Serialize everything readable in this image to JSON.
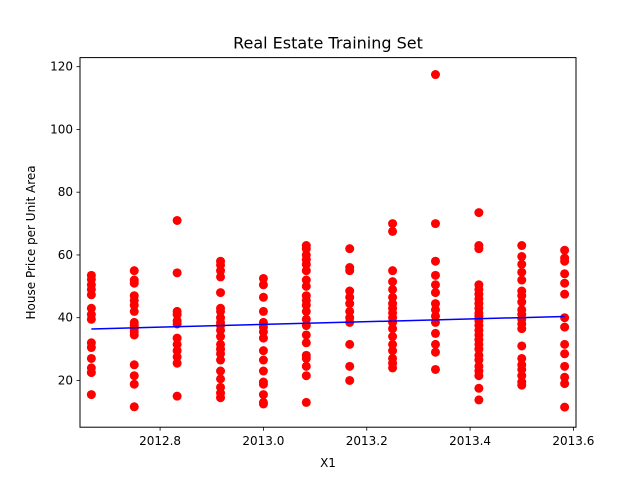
{
  "chart_data": {
    "type": "scatter",
    "title": "Real Estate Training Set",
    "xlabel": "X1",
    "ylabel": "House Price per Unit Area",
    "xlim": [
      2012.645,
      2013.605
    ],
    "ylim": [
      5.1,
      122.9
    ],
    "xticks": [
      {
        "value": 2012.8,
        "label": "2012.8"
      },
      {
        "value": 2013.0,
        "label": "2013.0"
      },
      {
        "value": 2013.2,
        "label": "2013.2"
      },
      {
        "value": 2013.4,
        "label": "2013.4"
      },
      {
        "value": 2013.6,
        "label": "2013.6"
      }
    ],
    "yticks": [
      {
        "value": 20,
        "label": "20"
      },
      {
        "value": 40,
        "label": "40"
      },
      {
        "value": 60,
        "label": "60"
      },
      {
        "value": 80,
        "label": "80"
      },
      {
        "value": 100,
        "label": "100"
      },
      {
        "value": 120,
        "label": "120"
      }
    ],
    "grid": false,
    "colors": {
      "points": "#ff0000",
      "fit_line": "#0000ff"
    },
    "series": [
      {
        "kind": "points",
        "points": [
          {
            "x": 2012.667,
            "ys": [
              53.5,
              52.2,
              50.5,
              49.0,
              47.3,
              43.0,
              41.0,
              39.5,
              32.0,
              30.5,
              27.0,
              24.0,
              22.5,
              15.5
            ]
          },
          {
            "x": 2012.75,
            "ys": [
              55.0,
              52.0,
              51.0,
              47.0,
              45.5,
              44.0,
              42.0,
              38.5,
              37.5,
              36.5,
              35.5,
              34.5,
              25.0,
              21.5,
              18.8,
              11.6
            ]
          },
          {
            "x": 2012.833,
            "ys": [
              71.0,
              54.3,
              42.0,
              41.0,
              39.0,
              38.0,
              33.5,
              31.5,
              29.5,
              27.5,
              25.5,
              15.0
            ]
          },
          {
            "x": 2012.917,
            "ys": [
              58.0,
              56.8,
              55.0,
              53.0,
              48.0,
              43.0,
              42.0,
              40.0,
              38.5,
              37.5,
              36.0,
              34.0,
              31.5,
              30.0,
              28.5,
              26.5,
              23.0,
              20.5,
              17.8,
              16.0,
              14.5
            ]
          },
          {
            "x": 2013.0,
            "ys": [
              52.5,
              50.5,
              46.5,
              42.0,
              38.5,
              37.0,
              35.5,
              33.5,
              29.5,
              26.5,
              23.0,
              19.5,
              18.8,
              15.5,
              13.0,
              12.5
            ]
          },
          {
            "x": 2013.083,
            "ys": [
              63.0,
              62.0,
              60.0,
              58.5,
              57.0,
              55.0,
              52.0,
              50.0,
              47.0,
              45.5,
              44.0,
              42.0,
              39.5,
              37.5,
              34.5,
              32.0,
              28.0,
              27.0,
              24.5,
              21.5,
              13.0
            ]
          },
          {
            "x": 2013.167,
            "ys": [
              62.0,
              56.0,
              55.0,
              48.5,
              46.5,
              44.5,
              42.0,
              40.0,
              38.5,
              31.5,
              24.5,
              20.0
            ]
          },
          {
            "x": 2013.25,
            "ys": [
              70.0,
              67.5,
              55.0,
              51.5,
              49.0,
              46.5,
              44.5,
              43.0,
              41.5,
              40.0,
              38.5,
              36.5,
              34.0,
              31.5,
              29.5,
              27.0,
              25.5,
              24.0
            ]
          },
          {
            "x": 2013.333,
            "ys": [
              117.5,
              70.0,
              58.0,
              53.5,
              50.5,
              48.0,
              44.5,
              42.5,
              40.5,
              38.5,
              35.0,
              31.5,
              29.0,
              23.5
            ]
          },
          {
            "x": 2013.417,
            "ys": [
              73.5,
              63.0,
              62.0,
              50.5,
              49.0,
              47.5,
              46.0,
              44.5,
              43.0,
              41.5,
              40.5,
              39.0,
              37.5,
              36.0,
              34.5,
              33.0,
              31.5,
              30.0,
              28.0,
              26.5,
              24.5,
              23.0,
              21.5,
              17.5,
              13.8
            ]
          },
          {
            "x": 2013.5,
            "ys": [
              63.0,
              59.5,
              57.0,
              54.5,
              52.0,
              48.5,
              47.0,
              45.0,
              42.5,
              41.0,
              39.5,
              38.0,
              36.5,
              31.0,
              27.0,
              25.0,
              23.5,
              21.5,
              19.5,
              18.5
            ]
          },
          {
            "x": 2013.583,
            "ys": [
              61.5,
              59.0,
              58.0,
              54.0,
              51.0,
              47.5,
              40.0,
              37.0,
              31.5,
              28.5,
              24.5,
              21.0,
              19.0,
              11.5
            ]
          }
        ]
      },
      {
        "kind": "fit_line",
        "x": [
          2012.667,
          2013.583
        ],
        "y": [
          36.4,
          40.4
        ]
      }
    ]
  }
}
